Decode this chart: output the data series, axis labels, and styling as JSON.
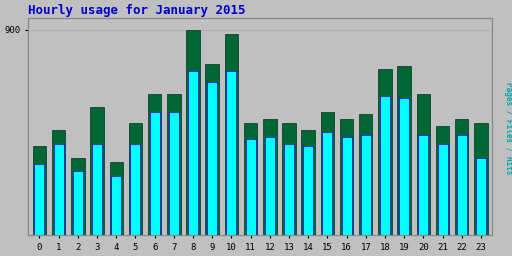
{
  "title": "Hourly usage for January 2015",
  "title_color": "#0000cc",
  "title_fontsize": 9,
  "hours": [
    0,
    1,
    2,
    3,
    4,
    5,
    6,
    7,
    8,
    9,
    10,
    11,
    12,
    13,
    14,
    15,
    16,
    17,
    18,
    19,
    20,
    21,
    22,
    23
  ],
  "pages_values": [
    390,
    460,
    340,
    560,
    320,
    490,
    620,
    620,
    900,
    750,
    880,
    490,
    510,
    490,
    460,
    540,
    510,
    530,
    730,
    740,
    620,
    480,
    510,
    490
  ],
  "hits_values": [
    310,
    400,
    280,
    400,
    260,
    400,
    540,
    540,
    720,
    670,
    720,
    420,
    430,
    400,
    390,
    450,
    430,
    440,
    610,
    600,
    440,
    400,
    440,
    340
  ],
  "pages_color": "#006633",
  "hits_color": "#00ffff",
  "hits_edge_color": "#0000ff",
  "background_color": "#c0c0c0",
  "plot_bg_color": "#c0c0c0",
  "ymax": 950,
  "ytick_value": 900,
  "ytick_label": "900",
  "bar_width": 0.7,
  "right_label": "Pages / Files / Hits",
  "right_label_pages_color": "#006633",
  "right_label_files_color": "#0000cc",
  "right_label_hits_color": "#00aaaa"
}
